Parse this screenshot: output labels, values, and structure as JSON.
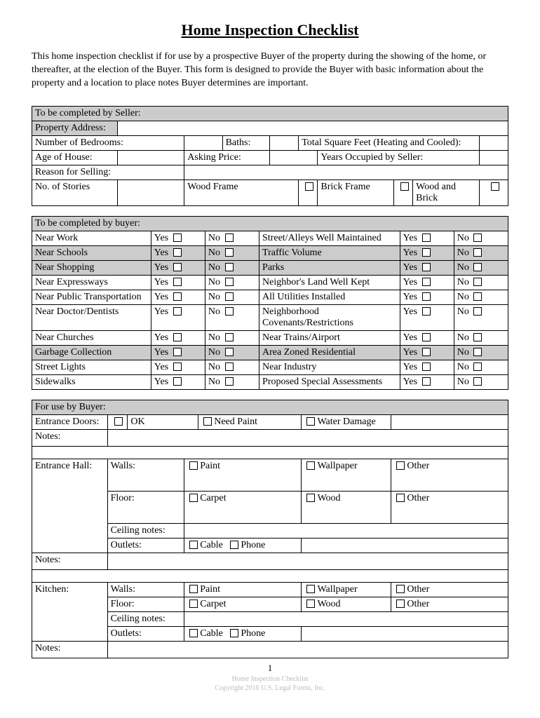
{
  "title": "Home Inspection Checklist",
  "intro": "This home inspection checklist if for use by a prospective Buyer of the property during the showing of the home, or thereafter, at the election of the Buyer.  This form is designed to provide the Buyer with basic information about the property and a location to place notes Buyer determines are important.",
  "seller": {
    "header": "To be completed by Seller:",
    "propertyAddress": "Property Address:",
    "bedrooms": "Number of Bedrooms:",
    "baths": "Baths:",
    "sqft": "Total Square Feet (Heating and Cooled):",
    "age": "Age of House:",
    "price": "Asking Price:",
    "years": "Years Occupied by Seller:",
    "reason": "Reason for Selling:",
    "stories": "No. of Stories",
    "wood": "Wood Frame",
    "brick": "Brick Frame",
    "both": "Wood and Brick"
  },
  "buyer": {
    "header": "To be completed by buyer:",
    "yes": "Yes",
    "no": "No",
    "leftItems": [
      "Near Work",
      "Near Schools",
      "Near Shopping",
      "Near Expressways",
      "Near Public Transportation",
      "Near Doctor/Dentists",
      "Near Churches",
      "Garbage Collection",
      "Street Lights",
      "Sidewalks"
    ],
    "rightItems": [
      "Street/Alleys Well Maintained",
      "Traffic Volume",
      "Parks",
      "Neighbor's Land Well Kept",
      "All Utilities Installed",
      "Neighborhood Covenants/Restrictions",
      "Near Trains/Airport",
      "Area Zoned Residential",
      "Near Industry",
      "Proposed Special Assessments"
    ],
    "shaded": [
      false,
      true,
      true,
      false,
      false,
      false,
      false,
      true,
      false,
      false
    ]
  },
  "use": {
    "header": "For use by Buyer:",
    "entranceDoors": "Entrance Doors:",
    "ok": "OK",
    "needPaint": "Need Paint",
    "waterDamage": "Water Damage",
    "notes": "Notes:",
    "entranceHall": "Entrance Hall:",
    "kitchen": "Kitchen:",
    "walls": "Walls:",
    "floor": "Floor:",
    "ceiling": "Ceiling notes:",
    "outlets": "Outlets:",
    "paint": "Paint",
    "wallpaper": "Wallpaper",
    "carpet": "Carpet",
    "wood": "Wood",
    "other": "Other",
    "cable": "Cable",
    "phone": "Phone"
  },
  "footer": {
    "page": "1",
    "line1": "Home Inspection Checklist",
    "line2": "Copyright 2016 U.S. Legal Forms, Inc."
  }
}
